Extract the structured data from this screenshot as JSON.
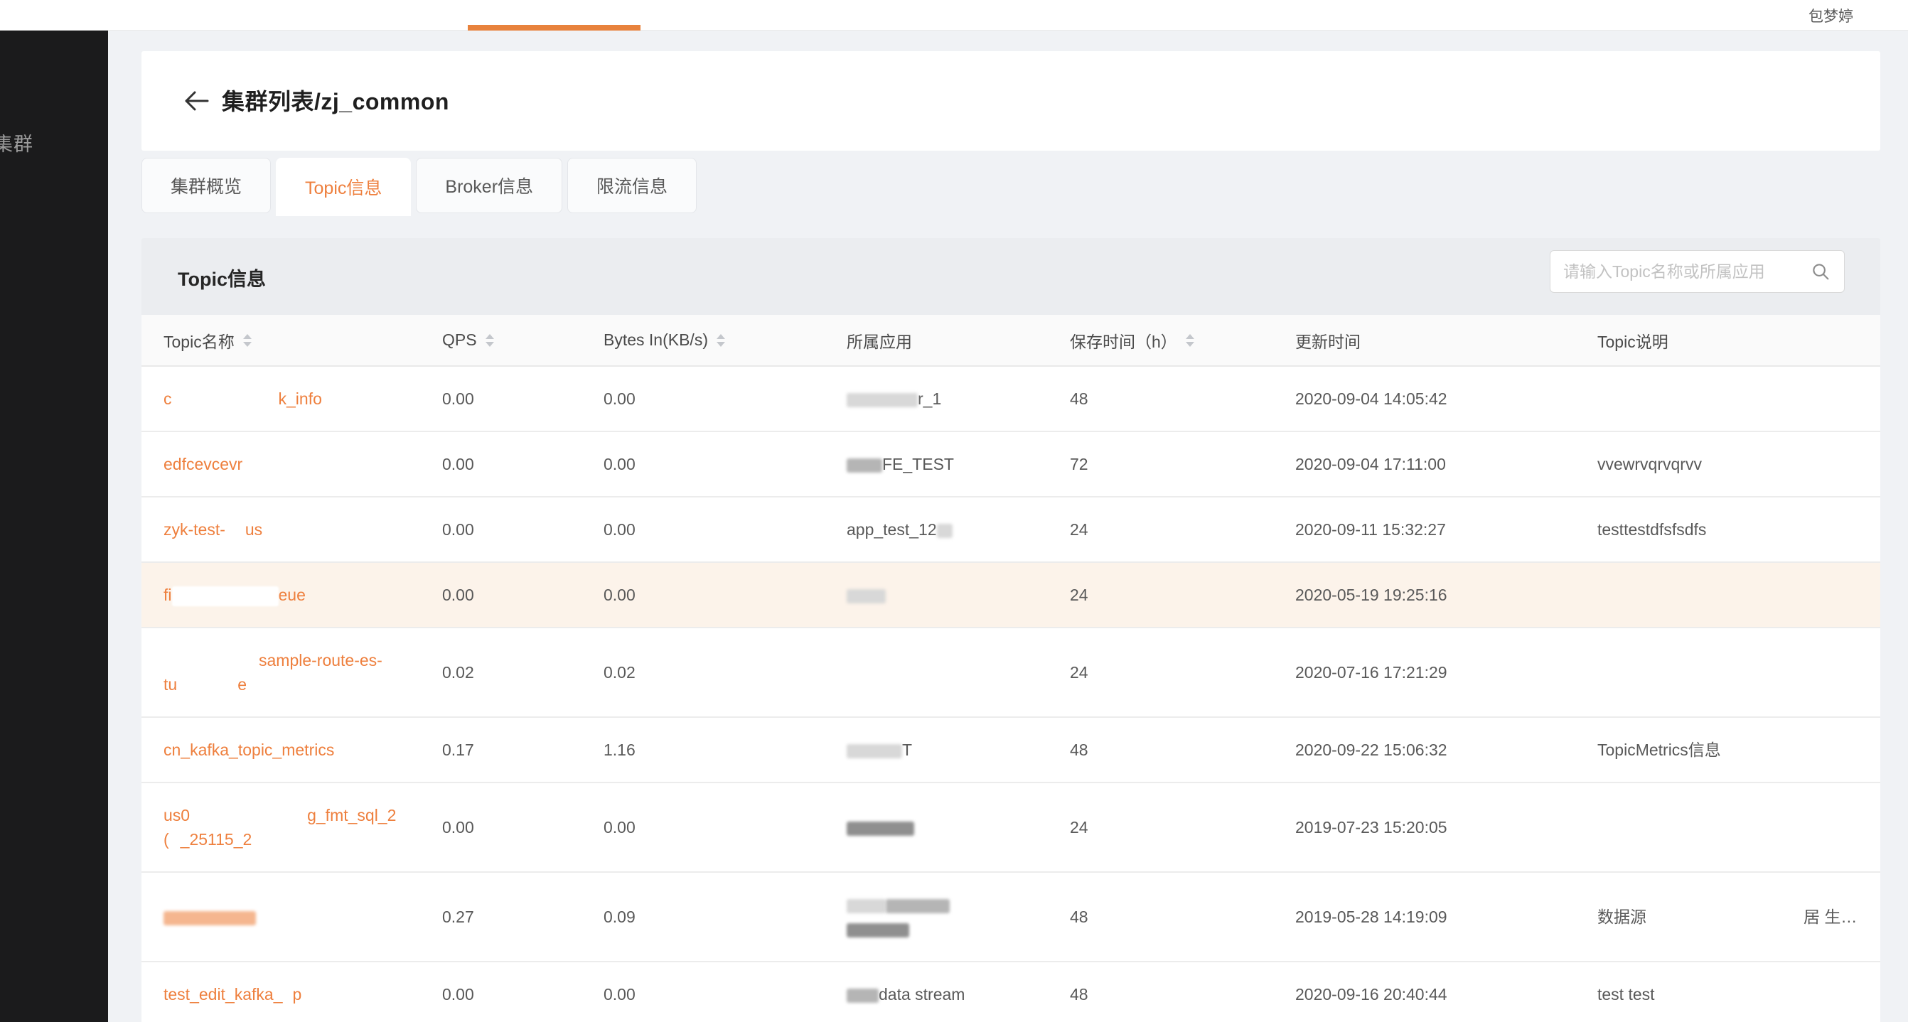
{
  "topbar": {
    "username": "包梦婷"
  },
  "sidebar": {
    "item_label": "集群"
  },
  "page": {
    "title": "集群列表/zj_common"
  },
  "icons": {
    "back": "arrow-left-icon",
    "search": "magnifier-icon",
    "sort": "caret-up-down-icon"
  },
  "tabs": [
    {
      "label": "集群概览",
      "active": false
    },
    {
      "label": "Topic信息",
      "active": true
    },
    {
      "label": "Broker信息",
      "active": false
    },
    {
      "label": "限流信息",
      "active": false
    }
  ],
  "panel": {
    "title": "Topic信息",
    "search_placeholder": "请输入Topic名称或所属应用"
  },
  "colors": {
    "accent": "#ee7f3d",
    "topbar_indicator": "#e8823c",
    "highlight_row": "#fcf3ea",
    "sidebar_bg": "#1b1b1c",
    "page_bg": "#f0f2f5"
  },
  "table": {
    "columns": [
      {
        "label": "Topic名称",
        "sortable": true
      },
      {
        "label": "QPS",
        "sortable": true
      },
      {
        "label": "Bytes In(KB/s)",
        "sortable": true
      },
      {
        "label": "所属应用",
        "sortable": false
      },
      {
        "label": "保存时间（h）",
        "sortable": true
      },
      {
        "label": "更新时间",
        "sortable": false
      },
      {
        "label": "Topic说明",
        "sortable": false
      },
      {
        "label": "",
        "sortable": false
      }
    ],
    "rows": [
      {
        "name": [
          [
            {
              "t": "c"
            },
            {
              "g": 150
            },
            {
              "t": "k_info"
            }
          ]
        ],
        "qps": "0.00",
        "bytes": "0.00",
        "app": [
          [
            {
              "r": 100,
              "c": "light"
            },
            {
              "t": "r_1"
            }
          ]
        ],
        "retention": "48",
        "updated": "2020-09-04 14:05:42",
        "desc": "",
        "extra": "",
        "highlight": false
      },
      {
        "name": [
          [
            {
              "t": "edfcevcevr"
            }
          ]
        ],
        "qps": "0.00",
        "bytes": "0.00",
        "app": [
          [
            {
              "r": 50,
              "c": "gray"
            },
            {
              "t": "FE_TEST"
            }
          ]
        ],
        "retention": "72",
        "updated": "2020-09-04 17:11:00",
        "desc": "vvewrvqrvqrvv",
        "extra": "",
        "highlight": false
      },
      {
        "name": [
          [
            {
              "t": "zyk-test-"
            },
            {
              "g": 28
            },
            {
              "t": "us"
            }
          ]
        ],
        "qps": "0.00",
        "bytes": "0.00",
        "app": [
          [
            {
              "t": "app_test_12"
            },
            {
              "r": 22,
              "c": "light"
            }
          ]
        ],
        "retention": "24",
        "updated": "2020-09-11 15:32:27",
        "desc": "testtestdfsfsdfs",
        "extra": "",
        "highlight": false
      },
      {
        "name": [
          [
            {
              "t": "fi"
            },
            {
              "r": 150,
              "c": "white"
            },
            {
              "t": "eue"
            }
          ]
        ],
        "qps": "0.00",
        "bytes": "0.00",
        "app": [
          [
            {
              "r": 55,
              "c": "light"
            }
          ]
        ],
        "retention": "24",
        "updated": "2020-05-19 19:25:16",
        "desc": "",
        "extra": "",
        "highlight": true
      },
      {
        "name": [
          [
            {
              "g": 134
            },
            {
              "t": "sample-route-es-"
            }
          ],
          [
            {
              "t": "tu"
            },
            {
              "g": 85
            },
            {
              "t": "e"
            }
          ]
        ],
        "qps": "0.02",
        "bytes": "0.02",
        "app": [],
        "retention": "24",
        "updated": "2020-07-16 17:21:29",
        "desc": "",
        "extra": "",
        "highlight": false
      },
      {
        "name": [
          [
            {
              "t": "cn_kafka_topic_metrics"
            }
          ]
        ],
        "qps": "0.17",
        "bytes": "1.16",
        "app": [
          [
            {
              "r": 78,
              "c": "light"
            },
            {
              "t": "T"
            }
          ]
        ],
        "retention": "48",
        "updated": "2020-09-22 15:06:32",
        "desc": "TopicMetrics信息",
        "extra": "",
        "highlight": false
      },
      {
        "name": [
          [
            {
              "t": "us0"
            },
            {
              "g": 165
            },
            {
              "t": "g_fmt_sql_2"
            }
          ],
          [
            {
              "t": "("
            },
            {
              "g": 16
            },
            {
              "t": "_25115_2"
            }
          ]
        ],
        "qps": "0.00",
        "bytes": "0.00",
        "app": [
          [
            {
              "r": 95,
              "c": "dark"
            }
          ]
        ],
        "retention": "24",
        "updated": "2019-07-23 15:20:05",
        "desc": "",
        "extra": "",
        "highlight": false
      },
      {
        "name": [
          [
            {
              "r": 130,
              "c": "orange"
            }
          ]
        ],
        "qps": "0.27",
        "bytes": "0.09",
        "app": [
          [
            {
              "r": 55,
              "c": "light"
            },
            {
              "r": 90,
              "c": "gray"
            }
          ],
          [
            {
              "r": 88,
              "c": "dark"
            }
          ]
        ],
        "retention": "48",
        "updated": "2019-05-28 14:19:09",
        "desc": "数据源",
        "extra": "居 生…",
        "highlight": false
      },
      {
        "name": [
          [
            {
              "t": "test_edit_kafka_"
            },
            {
              "g": 14
            },
            {
              "t": "p"
            }
          ]
        ],
        "qps": "0.00",
        "bytes": "0.00",
        "app": [
          [
            {
              "r": 45,
              "c": "gray"
            },
            {
              "t": "data stream"
            }
          ]
        ],
        "retention": "48",
        "updated": "2020-09-16 20:40:44",
        "desc": "test test",
        "extra": "",
        "highlight": false
      }
    ]
  }
}
